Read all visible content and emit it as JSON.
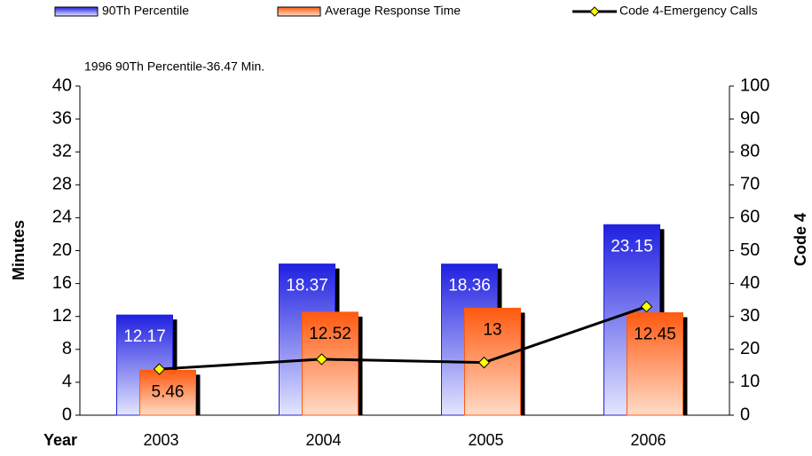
{
  "chart_data": {
    "type": "bar_line",
    "legend_position": "top",
    "annotation": "1996 90Th Percentile-36.47 Min.",
    "x_label": "Year",
    "y_label": "Minutes",
    "y2_label": "Code 4",
    "categories": [
      "2003",
      "2004",
      "2005",
      "2006"
    ],
    "series": [
      {
        "name": "90Th Percentile",
        "color": "#2020e0",
        "values": [
          12.17,
          18.37,
          18.36,
          23.15
        ]
      },
      {
        "name": "Average Response Time",
        "color": "#ff5a10",
        "values": [
          5.46,
          12.52,
          13,
          12.45
        ]
      },
      {
        "name": "Code 4-Emergency Calls",
        "color": "#000000",
        "axis": "y2",
        "values": [
          14,
          17,
          16,
          33
        ]
      }
    ],
    "ylim": [
      0,
      40
    ],
    "yticks": [
      0,
      4,
      8,
      12,
      16,
      20,
      24,
      28,
      32,
      36,
      40
    ],
    "y2lim": [
      0,
      100
    ],
    "y2ticks": [
      0,
      10,
      20,
      30,
      40,
      50,
      60,
      70,
      80,
      90,
      100
    ]
  }
}
